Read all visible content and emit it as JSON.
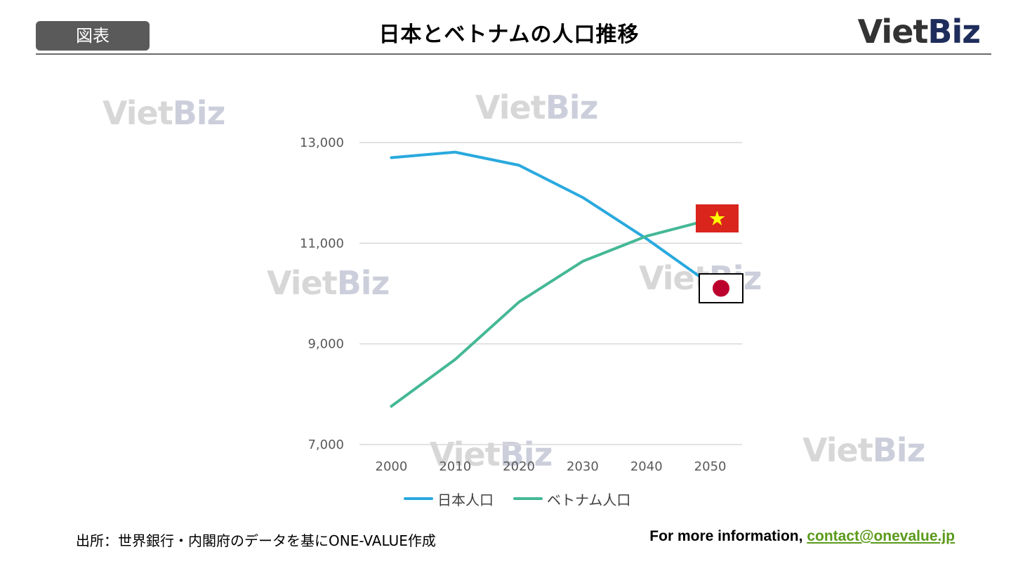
{
  "header": {
    "badge": "図表",
    "title": "日本とベトナムの人口推移",
    "logo_a": "Viet",
    "logo_b": "Biz"
  },
  "watermark": {
    "a": "Viet",
    "b": "Biz"
  },
  "colors": {
    "japan": "#29a9de",
    "vietnam": "#45b896",
    "grid": "#d9d9d9",
    "vn_flag_red": "#da251d",
    "vn_flag_star": "#ffff00",
    "jp_flag_circle": "#bc002d",
    "link": "#5a9a1a"
  },
  "chart_data": {
    "type": "line",
    "x": [
      "2000",
      "2010",
      "2020",
      "2030",
      "2040",
      "2050"
    ],
    "ylim": [
      7000,
      13000
    ],
    "yticks": [
      "7,000",
      "9,000",
      "11,000",
      "13,000"
    ],
    "ytick_values": [
      7000,
      9000,
      11000,
      13000
    ],
    "grid": true,
    "legend_position": "bottom",
    "series": [
      {
        "name": "日本人口",
        "color": "#29a9de",
        "values": [
          12700,
          12810,
          12550,
          11910,
          11090,
          10190
        ]
      },
      {
        "name": "ベトナム人口",
        "color": "#45b896",
        "values": [
          7760,
          8690,
          9830,
          10640,
          11140,
          11470
        ]
      }
    ]
  },
  "legend": {
    "japan": "日本人口",
    "vietnam": "ベトナム人口"
  },
  "footer": {
    "source": "出所：世界銀行・内閣府のデータを基にONE-VALUE作成",
    "more_label": "For more information, ",
    "email": "contact@onevalue.jp"
  }
}
